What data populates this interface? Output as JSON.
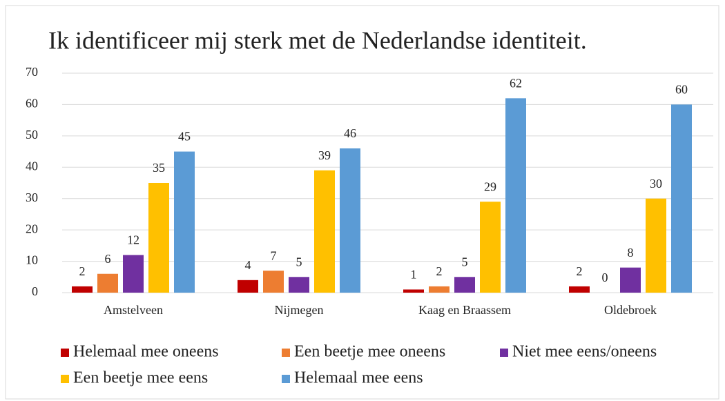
{
  "chart_data": {
    "type": "bar",
    "title": "Ik identificeer mij sterk met de Nederlandse identiteit.",
    "categories": [
      "Amstelveen",
      "Nijmegen",
      "Kaag en Braassem",
      "Oldebroek"
    ],
    "series": [
      {
        "name": "Helemaal mee oneens",
        "color": "#c00000",
        "values": [
          2,
          4,
          1,
          2
        ]
      },
      {
        "name": "Een beetje mee oneens",
        "color": "#ed7d31",
        "values": [
          6,
          7,
          2,
          0
        ]
      },
      {
        "name": "Niet mee eens/oneens",
        "color": "#7030a0",
        "values": [
          12,
          5,
          5,
          8
        ]
      },
      {
        "name": "Een beetje mee eens",
        "color": "#ffc000",
        "values": [
          35,
          39,
          29,
          30
        ]
      },
      {
        "name": "Helemaal mee eens",
        "color": "#5b9bd5",
        "values": [
          45,
          46,
          62,
          60
        ]
      }
    ],
    "ylim": [
      0,
      70
    ],
    "yticks": [
      0,
      10,
      20,
      30,
      40,
      50,
      60,
      70
    ],
    "grid": true,
    "legend": "bottom"
  }
}
